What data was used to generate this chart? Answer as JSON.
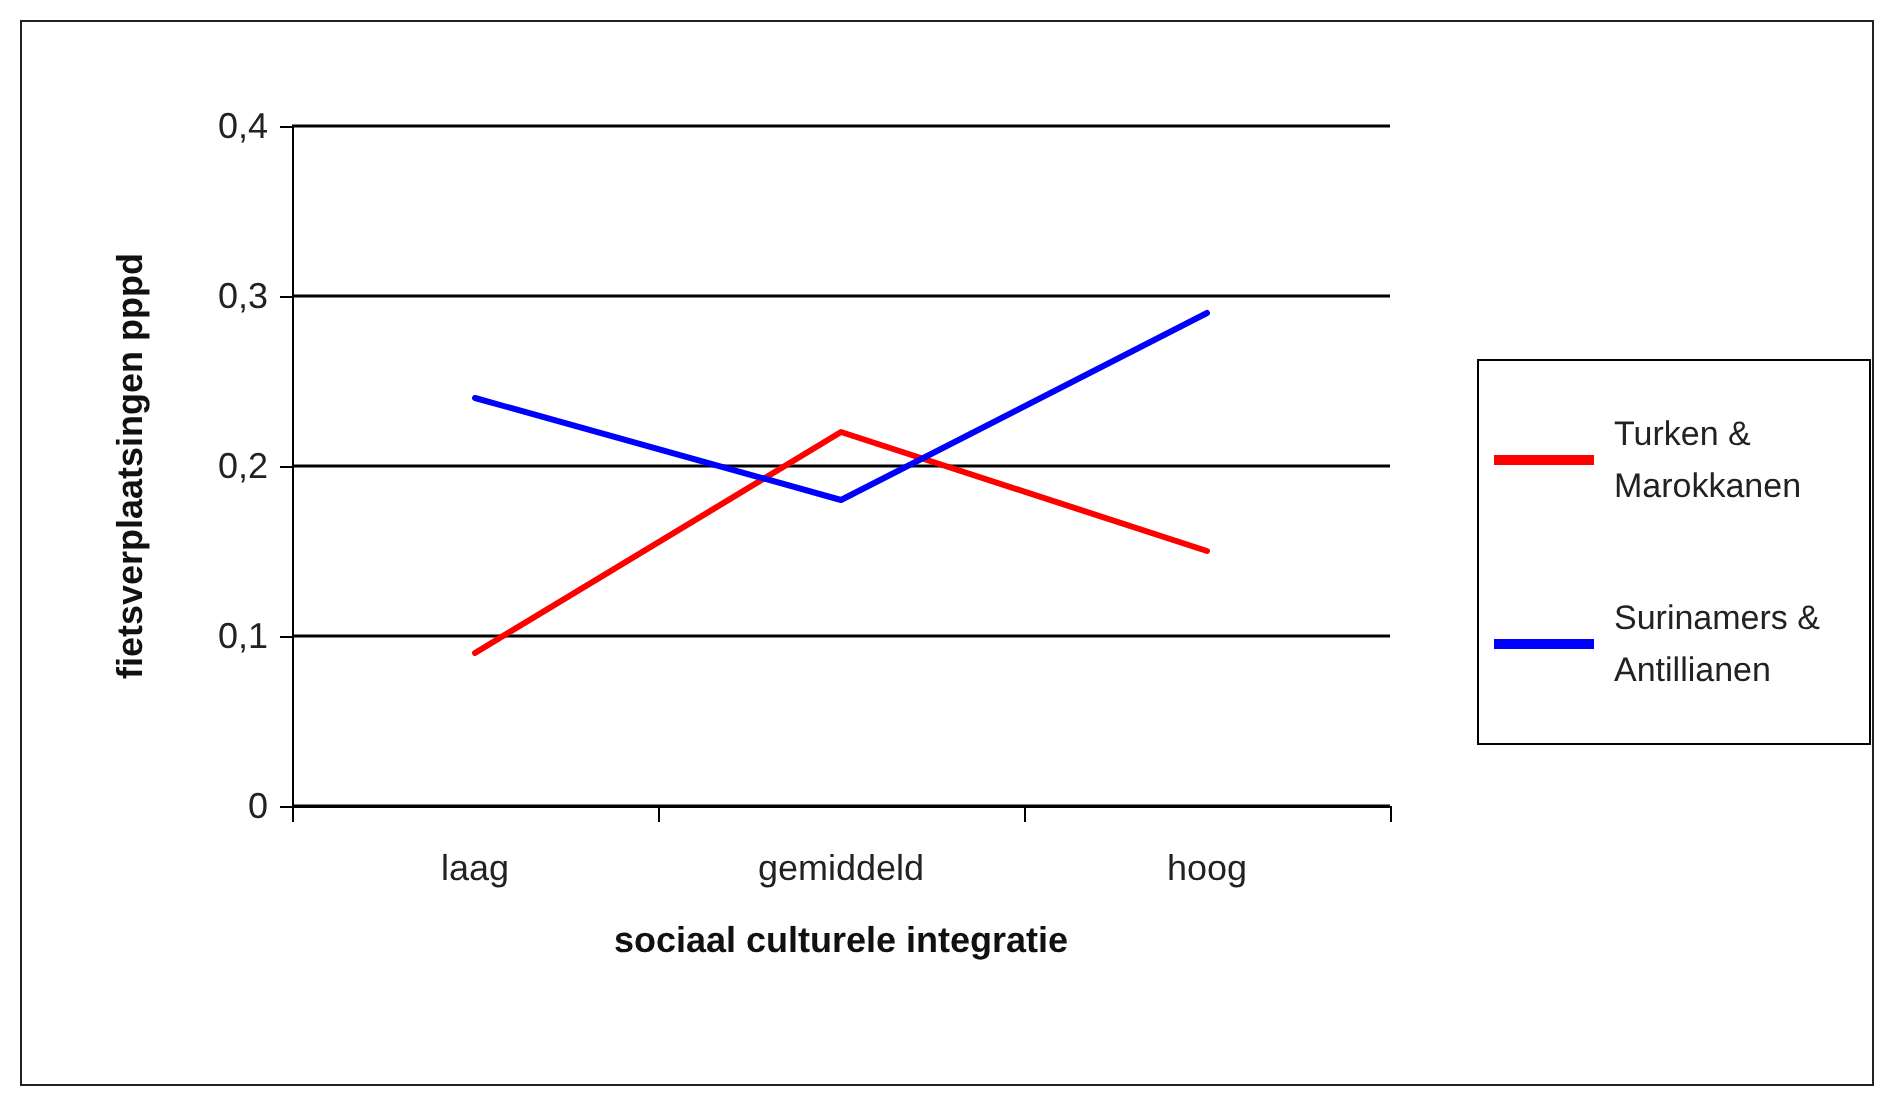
{
  "chart_data": {
    "type": "line",
    "xlabel": "sociaal culturele integratie",
    "ylabel": "fietsverplaatsingen pppd",
    "categories": [
      "laag",
      "gemiddeld",
      "hoog"
    ],
    "series": [
      {
        "name": "Turken & Marokkanen",
        "color": "#ff0000",
        "values": [
          0.09,
          0.22,
          0.15
        ]
      },
      {
        "name": "Surinamers & Antillianen",
        "color": "#0000ff",
        "values": [
          0.24,
          0.18,
          0.29
        ]
      }
    ],
    "ylim": [
      0,
      0.4
    ],
    "yticks": [
      {
        "value": 0,
        "label": "0"
      },
      {
        "value": 0.1,
        "label": "0,1"
      },
      {
        "value": 0.2,
        "label": "0,2"
      },
      {
        "value": 0.3,
        "label": "0,3"
      },
      {
        "value": 0.4,
        "label": "0,4"
      }
    ],
    "grid": "y",
    "legend": "right",
    "marker": "none",
    "line_style": "solid"
  }
}
